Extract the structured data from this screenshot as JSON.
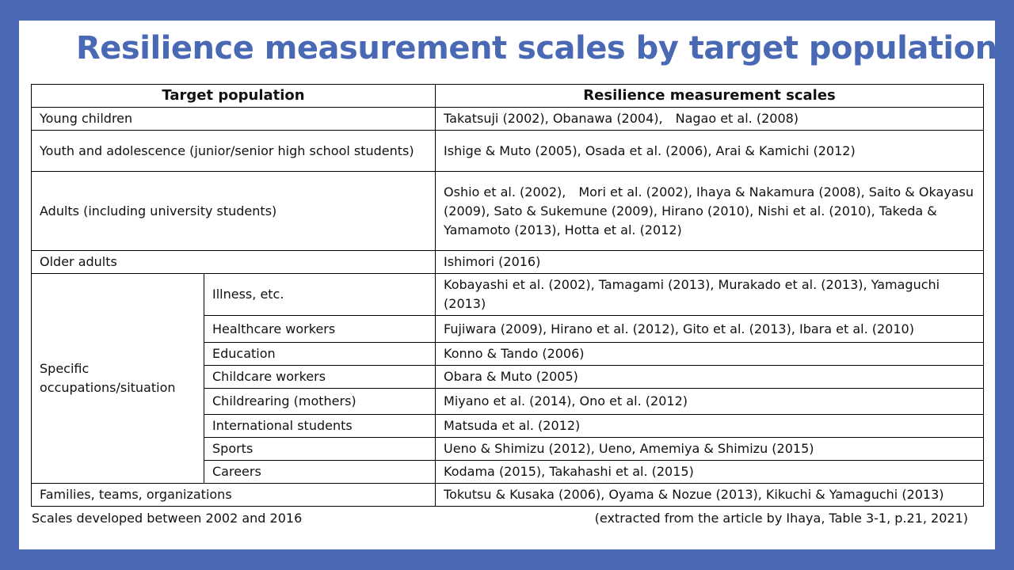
{
  "title": "Resilience measurement scales by target population",
  "table": {
    "headers": [
      "Target population",
      "Resilience measurement scales"
    ],
    "rows": [
      {
        "population": "Young children",
        "scales": "Takatsuji (2002), Obanawa (2004),　Nagao et al. (2008)"
      },
      {
        "population": "Youth and adolescence (junior/senior high school students)",
        "scales": "Ishige & Muto (2005), Osada et al. (2006), Arai & Kamichi (2012)"
      },
      {
        "population": "Adults (including university students)",
        "scales": "Oshio et al. (2002),　Mori et al. (2002), Ihaya & Nakamura (2008), Saito & Okayasu (2009), Sato & Sukemune (2009), Hirano (2010), Nishi et al. (2010), Takeda & Yamamoto (2013), Hotta et al. (2012)"
      },
      {
        "population": "Older adults",
        "scales": "Ishimori (2016)"
      }
    ],
    "specific_group": {
      "label": "Specific occupations/situation",
      "subrows": [
        {
          "category": "Illness, etc.",
          "scales": "Kobayashi et al. (2002), Tamagami (2013), Murakado et al. (2013), Yamaguchi (2013)"
        },
        {
          "category": "Healthcare workers",
          "scales": "Fujiwara (2009), Hirano et al. (2012), Gito et al. (2013), Ibara et al. (2010)"
        },
        {
          "category": "Education",
          "scales": "Konno & Tando (2006)"
        },
        {
          "category": "Childcare workers",
          "scales": "Obara & Muto (2005)"
        },
        {
          "category": "Childrearing (mothers)",
          "scales": "Miyano et al. (2014), Ono et al. (2012)"
        },
        {
          "category": "International students",
          "scales": "Matsuda et al. (2012)"
        },
        {
          "category": "Sports",
          "scales": "Ueno & Shimizu (2012), Ueno, Amemiya & Shimizu (2015)"
        },
        {
          "category": "Careers",
          "scales": "Kodama (2015), Takahashi et al. (2015)"
        }
      ]
    },
    "last_row": {
      "population": "Families, teams, organizations",
      "scales": "Tokutsu & Kusaka (2006), Oyama & Nozue (2013), Kikuchi & Yamaguchi (2013)"
    }
  },
  "footer": {
    "left": "Scales developed between 2002 and 2016",
    "right": "(extracted from the article by Ihaya, Table 3-1, p.21, 2021)"
  },
  "colors": {
    "background": "#4a69b4",
    "title": "#4a69b4",
    "slide": "#ffffff"
  }
}
